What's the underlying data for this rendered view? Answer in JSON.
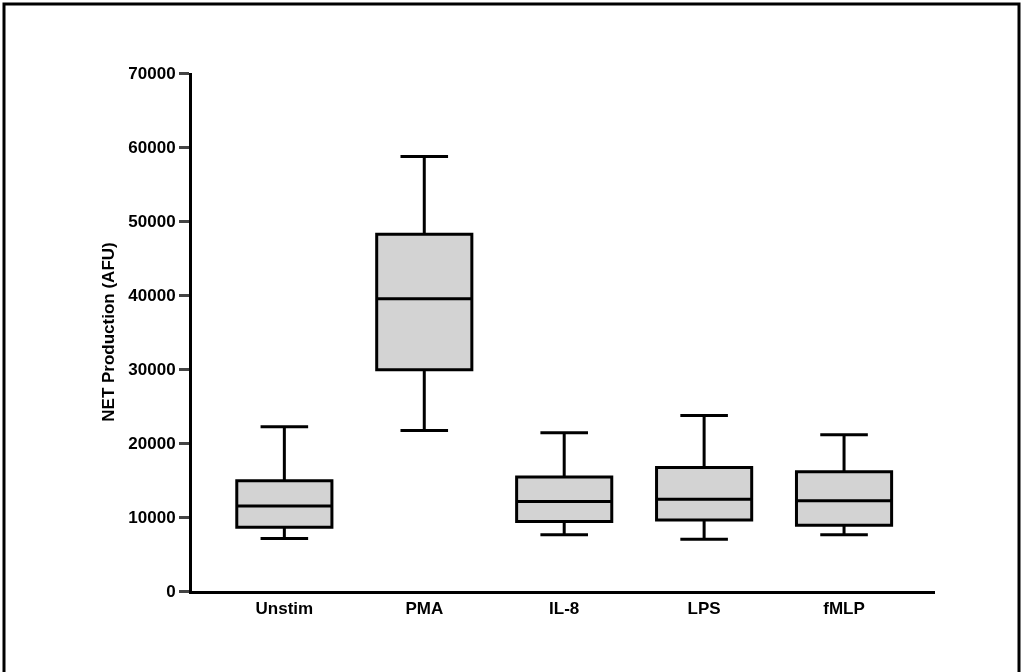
{
  "chart_data": {
    "type": "box",
    "ylabel": "NET Production (AFU)",
    "categories": [
      "Unstim",
      "PMA",
      "IL-8",
      "LPS",
      "fMLP"
    ],
    "color": "#d3d3d3",
    "boxes": [
      {
        "low": 7100,
        "q1": 8600,
        "median": 11500,
        "q3": 14900,
        "high": 22200
      },
      {
        "low": 21700,
        "q1": 29900,
        "median": 39500,
        "q3": 48200,
        "high": 58700
      },
      {
        "low": 7600,
        "q1": 9400,
        "median": 12100,
        "q3": 15400,
        "high": 21400
      },
      {
        "low": 7000,
        "q1": 9600,
        "median": 12400,
        "q3": 16700,
        "high": 23700
      },
      {
        "low": 7600,
        "q1": 8900,
        "median": 12200,
        "q3": 16100,
        "high": 21100
      }
    ],
    "ylim": [
      0,
      70000
    ],
    "yticks": [
      0,
      10000,
      20000,
      30000,
      40000,
      50000,
      60000,
      70000
    ]
  }
}
